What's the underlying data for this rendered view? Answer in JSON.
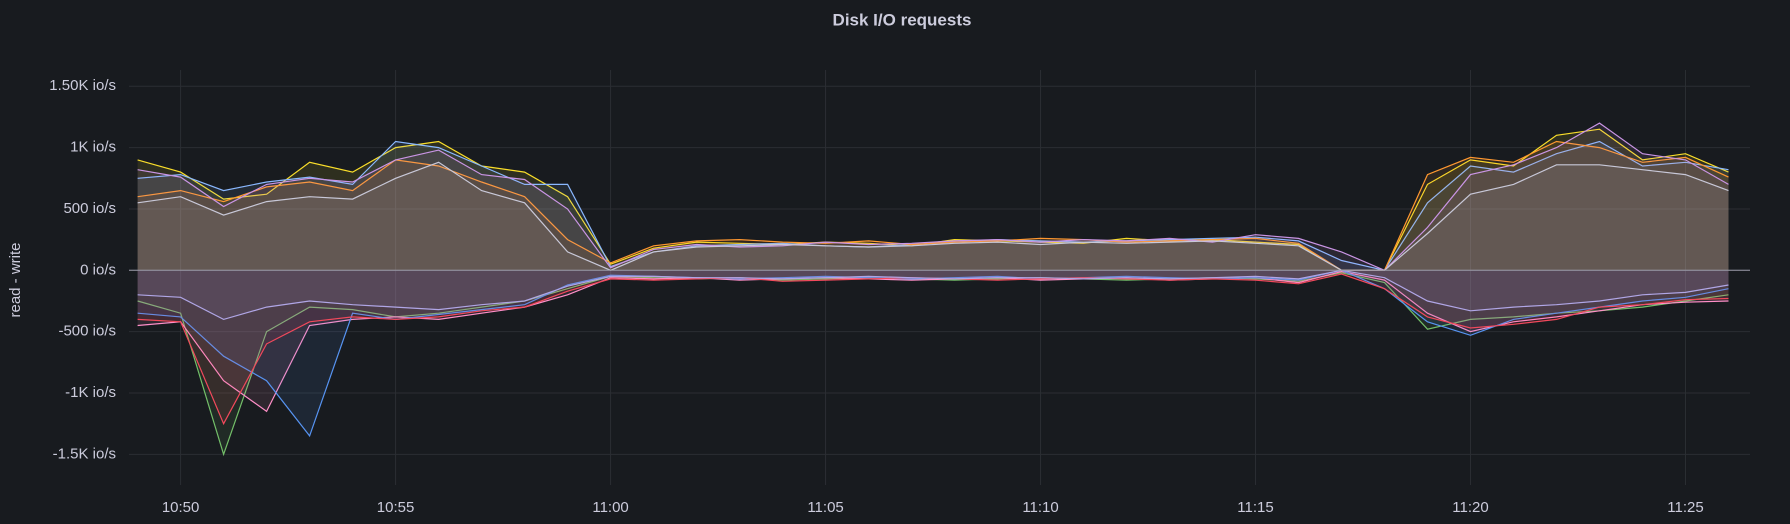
{
  "chart_data": {
    "type": "area",
    "title": "Disk I/O requests",
    "y_label": "read - write",
    "grid": true,
    "x": [
      "10:49",
      "10:50",
      "10:51",
      "10:52",
      "10:53",
      "10:54",
      "10:55",
      "10:56",
      "10:57",
      "10:58",
      "10:59",
      "11:00",
      "11:01",
      "11:02",
      "11:03",
      "11:04",
      "11:05",
      "11:06",
      "11:07",
      "11:08",
      "11:09",
      "11:10",
      "11:11",
      "11:12",
      "11:13",
      "11:14",
      "11:15",
      "11:16",
      "11:17",
      "11:18",
      "11:19",
      "11:20",
      "11:21",
      "11:22",
      "11:23",
      "11:24",
      "11:25",
      "11:26"
    ],
    "xticks": [
      "10:50",
      "10:55",
      "11:00",
      "11:05",
      "11:10",
      "11:15",
      "11:20",
      "11:25"
    ],
    "ylim": [
      -1750,
      1600
    ],
    "yticks": [
      {
        "value": 1500,
        "label": "1.50K io/s"
      },
      {
        "value": 1000,
        "label": "1K io/s"
      },
      {
        "value": 500,
        "label": "500 io/s"
      },
      {
        "value": 0,
        "label": "0 io/s"
      },
      {
        "value": -500,
        "label": "-500 io/s"
      },
      {
        "value": -1000,
        "label": "-1K io/s"
      },
      {
        "value": -1500,
        "label": "-1.5K io/s"
      }
    ],
    "series": [
      {
        "color": "#fade2a",
        "values": [
          900,
          800,
          580,
          620,
          880,
          800,
          1000,
          1050,
          850,
          800,
          600,
          50,
          180,
          230,
          220,
          210,
          230,
          220,
          200,
          250,
          240,
          230,
          220,
          260,
          240,
          250,
          230,
          210,
          0,
          0,
          700,
          900,
          850,
          1100,
          1150,
          900,
          950,
          800
        ]
      },
      {
        "color": "#8ab8ff",
        "values": [
          750,
          780,
          650,
          720,
          760,
          700,
          1050,
          1000,
          850,
          700,
          700,
          30,
          150,
          200,
          210,
          220,
          200,
          190,
          210,
          230,
          250,
          240,
          230,
          240,
          250,
          260,
          270,
          240,
          80,
          0,
          550,
          850,
          800,
          950,
          1050,
          850,
          880,
          820
        ]
      },
      {
        "color": "#ff9830",
        "values": [
          600,
          650,
          560,
          680,
          720,
          650,
          900,
          850,
          720,
          600,
          250,
          60,
          200,
          240,
          250,
          230,
          220,
          240,
          210,
          230,
          240,
          260,
          250,
          230,
          240,
          250,
          260,
          220,
          0,
          0,
          780,
          920,
          880,
          1050,
          1000,
          880,
          920,
          760
        ]
      },
      {
        "color": "#ca95e5",
        "values": [
          820,
          760,
          520,
          700,
          750,
          720,
          900,
          980,
          780,
          740,
          500,
          20,
          170,
          210,
          190,
          200,
          230,
          210,
          220,
          240,
          250,
          230,
          250,
          240,
          260,
          230,
          290,
          260,
          150,
          0,
          350,
          780,
          860,
          1000,
          1200,
          950,
          900,
          700
        ]
      },
      {
        "color": "#c8c8d8",
        "values": [
          550,
          600,
          450,
          560,
          600,
          580,
          750,
          880,
          650,
          550,
          150,
          0,
          150,
          190,
          200,
          210,
          200,
          190,
          200,
          220,
          230,
          210,
          230,
          220,
          230,
          240,
          220,
          200,
          0,
          0,
          300,
          620,
          700,
          860,
          860,
          820,
          780,
          650
        ]
      },
      {
        "color": "#73bf69",
        "values": [
          -250,
          -350,
          -1500,
          -500,
          -300,
          -320,
          -380,
          -350,
          -300,
          -250,
          -150,
          -50,
          -60,
          -70,
          -60,
          -80,
          -70,
          -60,
          -70,
          -80,
          -70,
          -60,
          -70,
          -80,
          -70,
          -60,
          -70,
          -90,
          -20,
          -100,
          -480,
          -400,
          -380,
          -350,
          -330,
          -300,
          -250,
          -200
        ]
      },
      {
        "color": "#ff8fc8",
        "values": [
          -450,
          -420,
          -900,
          -1150,
          -450,
          -400,
          -380,
          -400,
          -350,
          -300,
          -200,
          -60,
          -70,
          -60,
          -80,
          -70,
          -60,
          -70,
          -80,
          -70,
          -60,
          -80,
          -70,
          -60,
          -80,
          -70,
          -60,
          -100,
          -10,
          -80,
          -350,
          -500,
          -420,
          -380,
          -330,
          -280,
          -260,
          -250
        ]
      },
      {
        "color": "#5794f2",
        "values": [
          -350,
          -380,
          -700,
          -900,
          -1350,
          -350,
          -400,
          -360,
          -320,
          -280,
          -120,
          -40,
          -50,
          -60,
          -70,
          -60,
          -50,
          -60,
          -70,
          -60,
          -50,
          -70,
          -60,
          -50,
          -60,
          -70,
          -60,
          -80,
          0,
          -150,
          -420,
          -530,
          -400,
          -350,
          -300,
          -250,
          -220,
          -150
        ]
      },
      {
        "color": "#f2495c",
        "values": [
          -400,
          -420,
          -1250,
          -600,
          -420,
          -380,
          -400,
          -380,
          -330,
          -300,
          -170,
          -70,
          -80,
          -70,
          -60,
          -90,
          -80,
          -70,
          -60,
          -70,
          -80,
          -70,
          -60,
          -70,
          -80,
          -70,
          -80,
          -110,
          -30,
          -150,
          -380,
          -470,
          -440,
          -400,
          -300,
          -280,
          -240,
          -230
        ]
      },
      {
        "color": "#b0a6e6",
        "values": [
          -200,
          -220,
          -400,
          -300,
          -250,
          -280,
          -300,
          -320,
          -280,
          -250,
          -130,
          -50,
          -50,
          -60,
          -60,
          -70,
          -60,
          -50,
          -60,
          -70,
          -60,
          -60,
          -70,
          -60,
          -70,
          -60,
          -50,
          -70,
          0,
          -60,
          -250,
          -330,
          -300,
          -280,
          -250,
          -200,
          -180,
          -120
        ]
      }
    ]
  }
}
